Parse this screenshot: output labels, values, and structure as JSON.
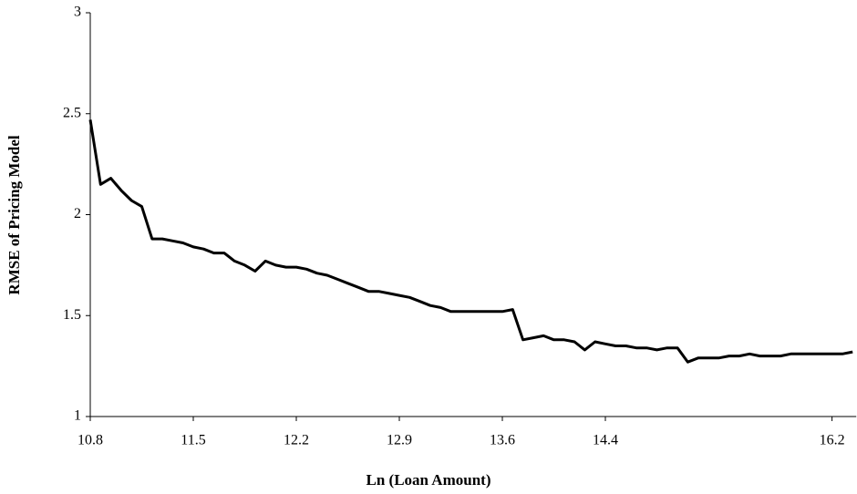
{
  "chart_data": {
    "type": "line",
    "x_label": "Ln (Loan Amount)",
    "y_label": "RMSE of Pricing Model",
    "color": "#000000",
    "categories": [
      "10.8",
      null,
      null,
      null,
      null,
      null,
      null,
      null,
      null,
      null,
      "11.5",
      null,
      null,
      null,
      null,
      null,
      null,
      null,
      null,
      null,
      "12.2",
      null,
      null,
      null,
      null,
      null,
      null,
      null,
      null,
      null,
      "12.9",
      null,
      null,
      null,
      null,
      null,
      null,
      null,
      null,
      null,
      "13.6",
      null,
      null,
      null,
      null,
      null,
      null,
      null,
      null,
      null,
      "14.4",
      null,
      null,
      null,
      null,
      null,
      null,
      null,
      null,
      null,
      null,
      null,
      null,
      null,
      null,
      null,
      null,
      null,
      null,
      null,
      null,
      null,
      "16.2",
      null,
      null
    ],
    "values": [
      2.47,
      2.15,
      2.18,
      2.12,
      2.07,
      2.04,
      1.88,
      1.88,
      1.87,
      1.86,
      1.84,
      1.83,
      1.81,
      1.81,
      1.77,
      1.75,
      1.72,
      1.77,
      1.75,
      1.74,
      1.74,
      1.73,
      1.71,
      1.7,
      1.68,
      1.66,
      1.64,
      1.62,
      1.62,
      1.61,
      1.6,
      1.59,
      1.57,
      1.55,
      1.54,
      1.52,
      1.52,
      1.52,
      1.52,
      1.52,
      1.52,
      1.53,
      1.38,
      1.39,
      1.4,
      1.38,
      1.38,
      1.37,
      1.33,
      1.37,
      1.36,
      1.35,
      1.35,
      1.34,
      1.34,
      1.33,
      1.34,
      1.34,
      1.27,
      1.29,
      1.29,
      1.29,
      1.3,
      1.3,
      1.31,
      1.3,
      1.3,
      1.3,
      1.31,
      1.31,
      1.31,
      1.31,
      1.31,
      1.31,
      1.32
    ],
    "ylim": [
      1,
      3
    ],
    "yticks": [
      1,
      1.5,
      2,
      2.5,
      3
    ]
  }
}
